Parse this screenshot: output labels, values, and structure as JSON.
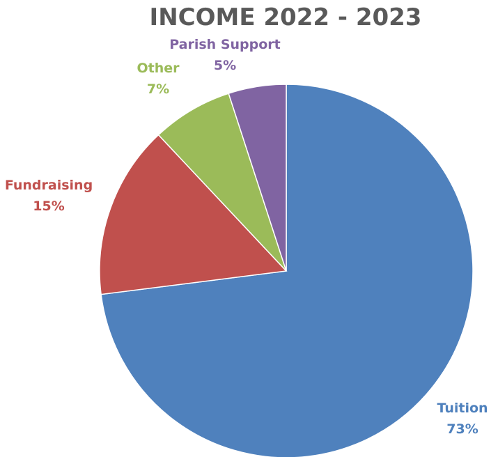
{
  "chart_data": {
    "type": "pie",
    "title": "INCOME 2022 - 2023",
    "start": "12 o'clock",
    "direction": "clockwise",
    "legend": "none",
    "slices": [
      {
        "label": "Tuition",
        "value": 73,
        "value_label": "73%",
        "color": "#4F81BD"
      },
      {
        "label": "Fundraising",
        "value": 15,
        "value_label": "15%",
        "color": "#C0504D"
      },
      {
        "label": "Other",
        "value": 7,
        "value_label": "7%",
        "color": "#9BBB59"
      },
      {
        "label": "Parish Support",
        "value": 5,
        "value_label": "5%",
        "color": "#8064A2"
      }
    ]
  }
}
